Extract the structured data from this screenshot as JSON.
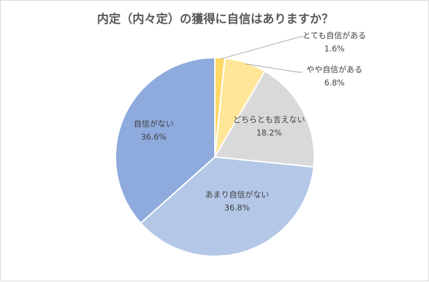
{
  "chart_data": {
    "type": "pie",
    "title": "内定（内々定）の獲得に自信はありますか？",
    "slices": [
      {
        "label": "とても自信がある",
        "value": 1.6,
        "value_label": "1.6%",
        "color": "#ffd966"
      },
      {
        "label": "やや自信がある",
        "value": 6.8,
        "value_label": "6.8%",
        "color": "#ffe699"
      },
      {
        "label": "どちらとも言えない",
        "value": 18.2,
        "value_label": "18.2%",
        "color": "#d9d9d9"
      },
      {
        "label": "あまり自信がない",
        "value": 36.8,
        "value_label": "36.8%",
        "color": "#b4c7e7"
      },
      {
        "label": "自信がない",
        "value": 36.6,
        "value_label": "36.6%",
        "color": "#8faadc"
      }
    ],
    "start_angle": "12 o'clock",
    "direction": "clockwise",
    "legend": "none"
  }
}
